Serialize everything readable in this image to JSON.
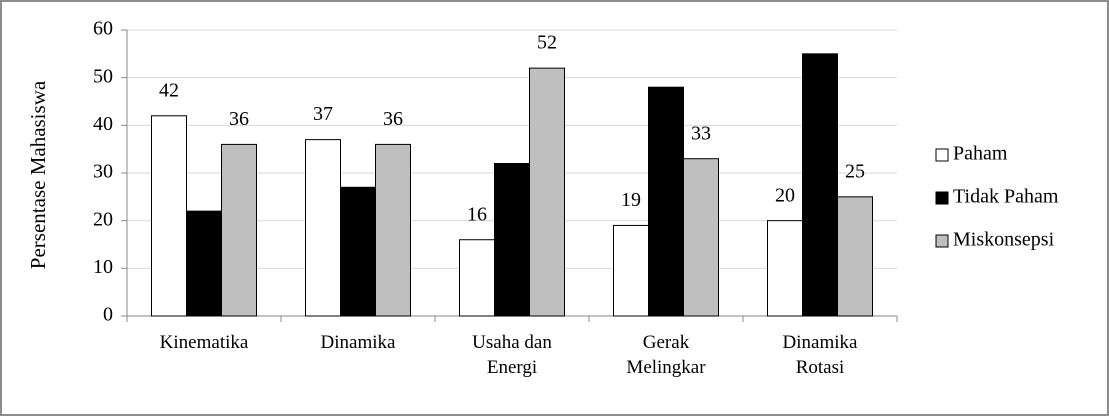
{
  "chart_data": {
    "type": "bar",
    "y_label": "Persentase Mahasiswa",
    "categories": [
      "Kinematika",
      "Dinamika",
      "Usaha dan Energi",
      "Gerak Melingkar",
      "Dinamika Rotasi"
    ],
    "series": [
      {
        "name": "Paham",
        "color": "#ffffff",
        "values": [
          42,
          37,
          16,
          19,
          20
        ],
        "data_labels": true
      },
      {
        "name": "Tidak Paham",
        "color": "#000000",
        "values": [
          22,
          27,
          32,
          48,
          55
        ],
        "data_labels": false
      },
      {
        "name": "Miskonsepsi",
        "color": "#bfbfbf",
        "values": [
          36,
          36,
          52,
          33,
          25
        ],
        "data_labels": true
      }
    ],
    "ylim": [
      0,
      60
    ],
    "yticks": [
      0,
      10,
      20,
      30,
      40,
      50,
      60
    ],
    "grid": true,
    "legend": "right"
  }
}
